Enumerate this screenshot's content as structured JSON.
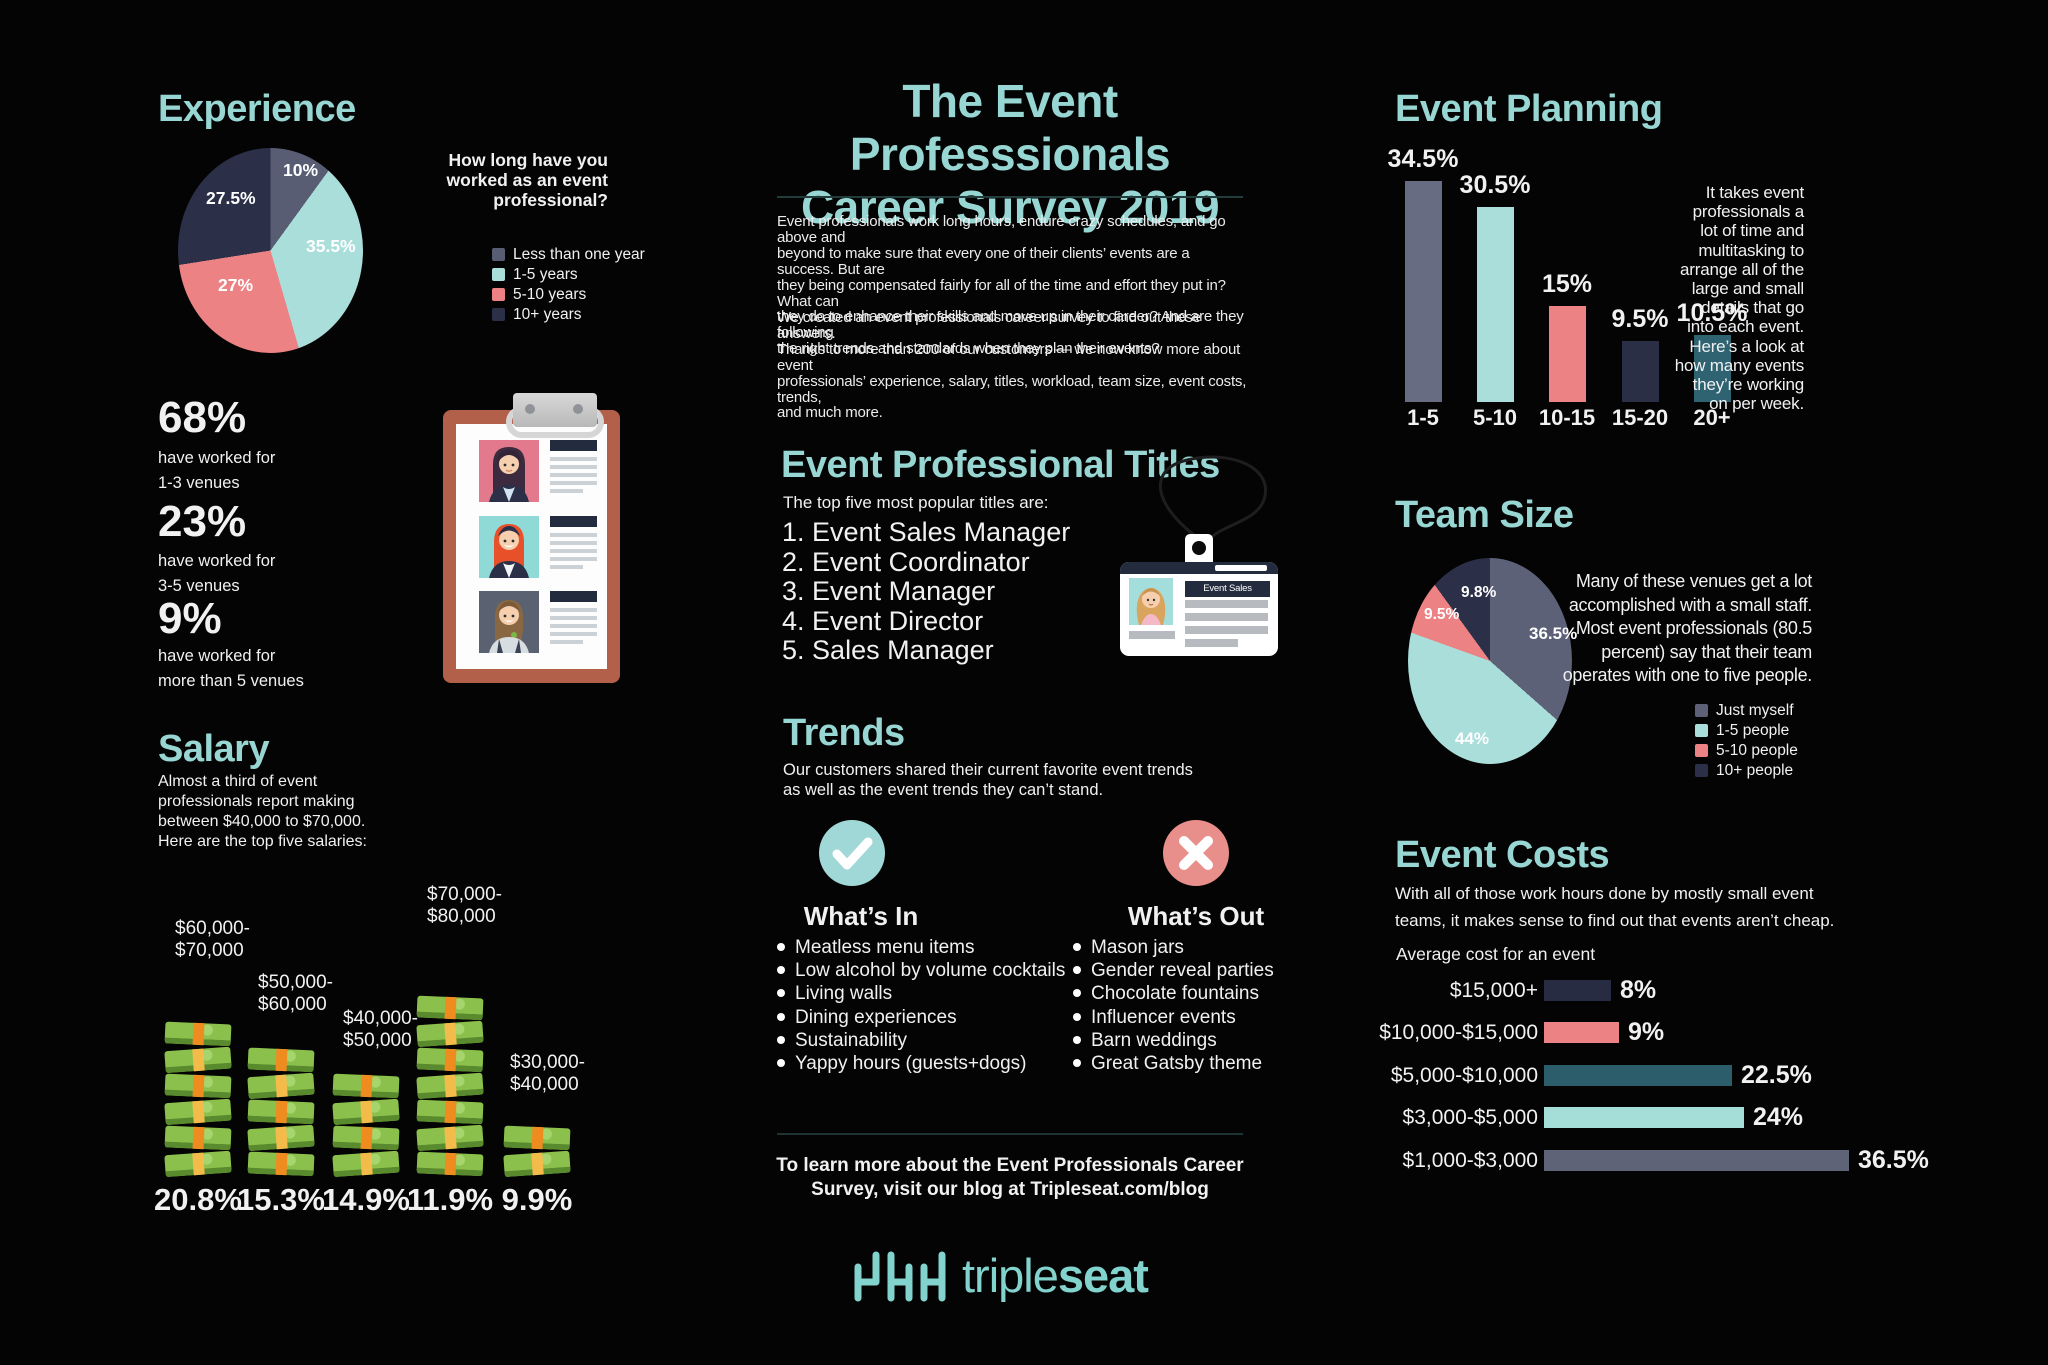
{
  "colors": {
    "background": "#040404",
    "heading_teal": "#97d6d2",
    "light_teal": "#a9dedb",
    "salmon": "#ed8284",
    "navy": "#2b3048",
    "slate": "#686c82",
    "dark_teal": "#2f6372",
    "money_green": "#8bc04c",
    "clipboard_brown": "#b26049",
    "logo_teal": "#82d2cd"
  },
  "header": {
    "title": "The Event Professsionals\nCareer Survey 2019",
    "intro_p1": "Event professionals work long hours, endure crazy schedules, and go above and\nbeyond to make sure that every one of their clients’ events are a success. But are\nthey being compensated fairly for all of the time and effort they put in? What can\nthey do to enhance their skills and move up in their career? And are they following\nthe right trends and standards when they plan their events?",
    "intro_p2": "We created an event professionals career survey to find out these answers.\nThanks to more than 200 of our customers — we now know more about event\nprofessionals’ experience, salary, titles, workload, team size, event costs, trends,\nand much more."
  },
  "experience": {
    "heading": "Experience",
    "question": "How long have you\nworked as an event\nprofessional?",
    "slice_labels": [
      "10%",
      "35.5%",
      "27%",
      "27.5%"
    ],
    "legend": [
      {
        "label": "Less than one year"
      },
      {
        "label": "1-5 years"
      },
      {
        "label": "5-10 years"
      },
      {
        "label": "10+ years"
      }
    ]
  },
  "venues": {
    "stats": [
      {
        "pct": "68%",
        "desc": "have worked for\n1-3 venues"
      },
      {
        "pct": "23%",
        "desc": "have worked for\n3-5 venues"
      },
      {
        "pct": "9%",
        "desc": "have worked for\nmore than 5 venues"
      }
    ]
  },
  "salary": {
    "heading": "Salary",
    "desc": "Almost a third of event\nprofessionals report making\nbetween $40,000 to $70,000.\nHere are the top five salaries:",
    "stacks": [
      {
        "range": "$60,000-\n$70,000",
        "pct": "20.8%"
      },
      {
        "range": "$50,000-\n$60,000",
        "pct": "15.3%"
      },
      {
        "range": "$40,000-\n$50,000",
        "pct": "14.9%"
      },
      {
        "range": "$70,000-\n$80,000",
        "pct": "11.9%"
      },
      {
        "range": "$30,000-\n$40,000",
        "pct": "9.9%"
      }
    ]
  },
  "titles": {
    "heading": "Event Professional Titles",
    "intro": "The top five most popular titles are:",
    "items": [
      "Event Sales Manager",
      "Event Coordinator",
      "Event Manager",
      "Event Director",
      "Sales Manager"
    ],
    "badge_title": "Event Sales Manager"
  },
  "trends": {
    "heading": "Trends",
    "desc": "Our customers shared their current favorite event trends\nas well as the event trends they can’t stand.",
    "whats_in": {
      "title": "What’s In",
      "items": [
        "Meatless menu items",
        "Low alcohol by volume cocktails",
        "Living walls",
        "Dining experiences",
        "Sustainability",
        "Yappy hours (guests+dogs)"
      ]
    },
    "whats_out": {
      "title": "What’s Out",
      "items": [
        "Mason jars",
        "Gender reveal parties",
        "Chocolate fountains",
        "Influencer events",
        "Barn weddings",
        "Great Gatsby theme"
      ]
    }
  },
  "event_planning": {
    "heading": "Event Planning",
    "desc": "It takes event\nprofessionals a\nlot of time and\nmultitasking to\narrange all of the\nlarge and small\ndetails that go\ninto each event.\nHere’s a look at\nhow many events\nthey’re working\non per week.",
    "bars": [
      {
        "value": "34.5%",
        "cat": "1-5"
      },
      {
        "value": "30.5%",
        "cat": "5-10"
      },
      {
        "value": "15%",
        "cat": "10-15"
      },
      {
        "value": "9.5%",
        "cat": "15-20"
      },
      {
        "value": "10.5%",
        "cat": "20+"
      }
    ]
  },
  "team_size": {
    "heading": "Team Size",
    "desc": "Many of these venues get a lot\naccomplished with a small staff.\nMost event professionals (80.5\npercent) say that their team\noperates with one to five people.",
    "slice_labels": [
      "36.5%",
      "44%",
      "9.5%",
      "9.8%"
    ],
    "legend": [
      {
        "label": "Just myself"
      },
      {
        "label": "1-5 people"
      },
      {
        "label": "5-10 people"
      },
      {
        "label": "10+ people"
      }
    ]
  },
  "event_costs": {
    "heading": "Event Costs",
    "desc": "With all of those work hours done by mostly small event\nteams, it makes sense to find out that events aren’t cheap.",
    "subtitle": "Average cost for an event",
    "rows": [
      {
        "label": "$15,000+",
        "value": "8%"
      },
      {
        "label": "$10,000-$15,000",
        "value": "9%"
      },
      {
        "label": "$5,000-$10,000",
        "value": "22.5%"
      },
      {
        "label": "$3,000-$5,000",
        "value": "24%"
      },
      {
        "label": "$1,000-$3,000",
        "value": "36.5%"
      }
    ]
  },
  "footer": {
    "blog_note": "To learn more about the Event Professionals Career\nSurvey, visit our blog at Tripleseat.com/blog",
    "logo_prefix": "triple",
    "logo_suffix": "seat"
  },
  "chart_data": [
    {
      "type": "pie",
      "title": "Experience",
      "question": "How long have you worked as an event professional?",
      "labels": [
        "Less than one year",
        "1-5 years",
        "5-10 years",
        "10+ years"
      ],
      "values": [
        10,
        35.5,
        27,
        27.5
      ],
      "colors": [
        "#595d74",
        "#a9dedb",
        "#ed8284",
        "#2b3048"
      ],
      "start_angle_deg": 0,
      "direction": "clockwise",
      "legend_position": "right"
    },
    {
      "type": "bar",
      "subtype": "pictograph-money-stacks",
      "title": "Salary",
      "categories": [
        "$60,000-$70,000",
        "$50,000-$60,000",
        "$40,000-$50,000",
        "$70,000-$80,000",
        "$30,000-$40,000"
      ],
      "values": [
        20.8,
        15.3,
        14.9,
        11.9,
        9.9
      ],
      "bundles": [
        6,
        5,
        4,
        7,
        2
      ],
      "unit": "%"
    },
    {
      "type": "bar",
      "title": "Event Planning",
      "xlabel": "events per week",
      "categories": [
        "1-5",
        "5-10",
        "10-15",
        "15-20",
        "20+"
      ],
      "values": [
        34.5,
        30.5,
        15,
        9.5,
        10.5
      ],
      "colors": [
        "#686c82",
        "#a9dedb",
        "#ed8284",
        "#2a2f45",
        "#2f6372"
      ],
      "unit": "%"
    },
    {
      "type": "pie",
      "title": "Team Size",
      "labels": [
        "Just myself",
        "1-5 people",
        "5-10 people",
        "10+ people"
      ],
      "values": [
        36.5,
        44,
        9.5,
        9.8
      ],
      "colors": [
        "#5d6178",
        "#a9dedb",
        "#ed8284",
        "#2b3048"
      ],
      "start_angle_deg": 0,
      "direction": "clockwise",
      "legend_position": "right"
    },
    {
      "type": "bar",
      "subtype": "horizontal",
      "title": "Event Costs",
      "subtitle": "Average cost for an event",
      "categories": [
        "$15,000+",
        "$10,000-$15,000",
        "$5,000-$10,000",
        "$3,000-$5,000",
        "$1,000-$3,000"
      ],
      "values": [
        8,
        9,
        22.5,
        24,
        36.5
      ],
      "colors": [
        "#272c42",
        "#ed8284",
        "#2c5d6b",
        "#a5ded9",
        "#5f6377"
      ],
      "unit": "%"
    }
  ]
}
